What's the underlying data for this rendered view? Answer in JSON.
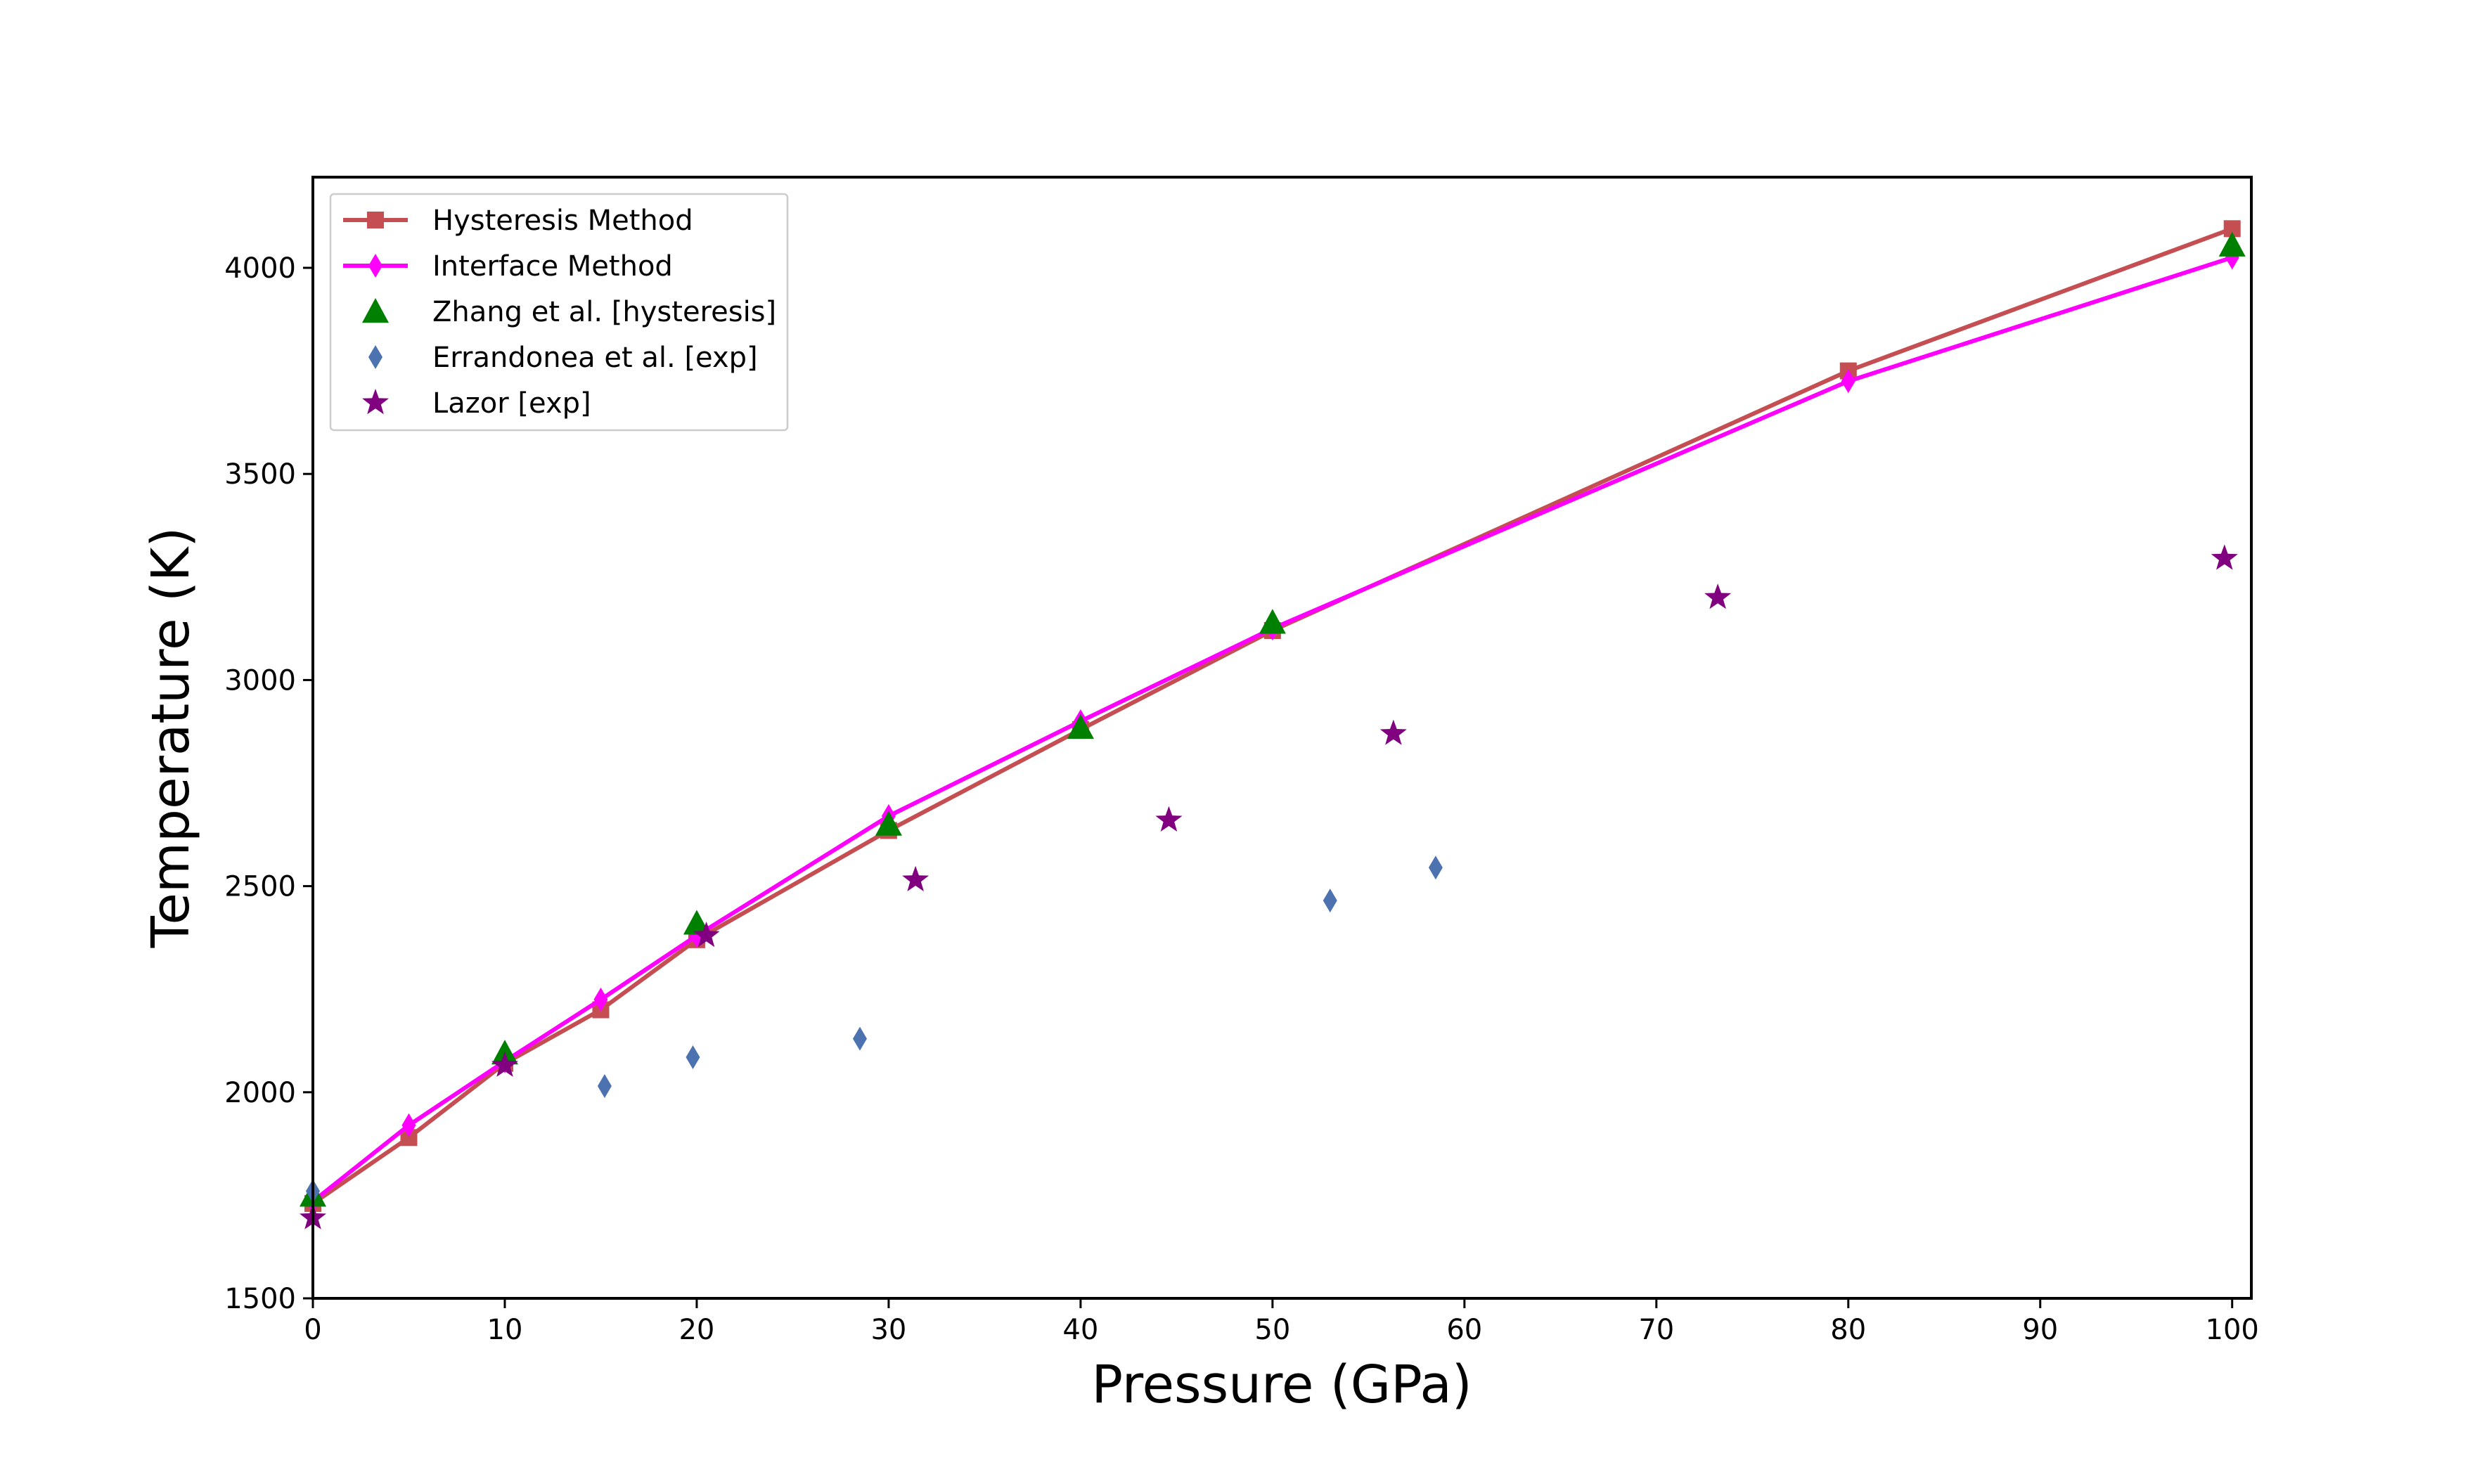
{
  "chart_data": {
    "type": "line",
    "title": "",
    "xlabel": "Pressure (GPa)",
    "ylabel": "Temperature (K)",
    "xlim": [
      0,
      101
    ],
    "ylim": [
      1500,
      4220
    ],
    "xticks": [
      0,
      10,
      20,
      30,
      40,
      50,
      60,
      70,
      80,
      90,
      100
    ],
    "yticks": [
      1500,
      2000,
      2500,
      3000,
      3500,
      4000
    ],
    "grid": false,
    "legend_position": "top-left",
    "series": [
      {
        "name": "Hysteresis Method",
        "style": "line",
        "marker": "square",
        "color": "#c44e52",
        "points": [
          [
            0,
            1730
          ],
          [
            5,
            1890
          ],
          [
            10,
            2070
          ],
          [
            15,
            2200
          ],
          [
            20,
            2370
          ],
          [
            30,
            2635
          ],
          [
            40,
            2880
          ],
          [
            50,
            3120
          ],
          [
            80,
            3750
          ],
          [
            100,
            4095
          ]
        ]
      },
      {
        "name": "Interface Method",
        "style": "line",
        "marker": "thin_diamond",
        "color": "#ff00ff",
        "points": [
          [
            0,
            1735
          ],
          [
            5,
            1920
          ],
          [
            10,
            2075
          ],
          [
            15,
            2225
          ],
          [
            20,
            2380
          ],
          [
            30,
            2670
          ],
          [
            40,
            2900
          ],
          [
            50,
            3125
          ],
          [
            80,
            3725
          ],
          [
            100,
            4025
          ]
        ]
      },
      {
        "name": "Zhang et al. [hysteresis]",
        "style": "scatter",
        "marker": "triangle",
        "color": "#008000",
        "points": [
          [
            0,
            1750
          ],
          [
            10,
            2095
          ],
          [
            20,
            2410
          ],
          [
            30,
            2650
          ],
          [
            40,
            2885
          ],
          [
            50,
            3140
          ],
          [
            100,
            4055
          ]
        ]
      },
      {
        "name": "Errandonea et al. [exp]",
        "style": "scatter",
        "marker": "thin_diamond",
        "color": "#4c72b0",
        "points": [
          [
            0,
            1760
          ],
          [
            15.2,
            2015
          ],
          [
            19.8,
            2085
          ],
          [
            28.5,
            2130
          ],
          [
            53,
            2465
          ],
          [
            58.5,
            2545
          ]
        ]
      },
      {
        "name": "Lazor [exp]",
        "style": "scatter",
        "marker": "star",
        "color": "#800080",
        "points": [
          [
            0,
            1695
          ],
          [
            10,
            2065
          ],
          [
            20.5,
            2380
          ],
          [
            31.4,
            2515
          ],
          [
            44.6,
            2660
          ],
          [
            56.3,
            2870
          ],
          [
            73.2,
            3200
          ],
          [
            99.6,
            3295
          ]
        ]
      }
    ]
  }
}
